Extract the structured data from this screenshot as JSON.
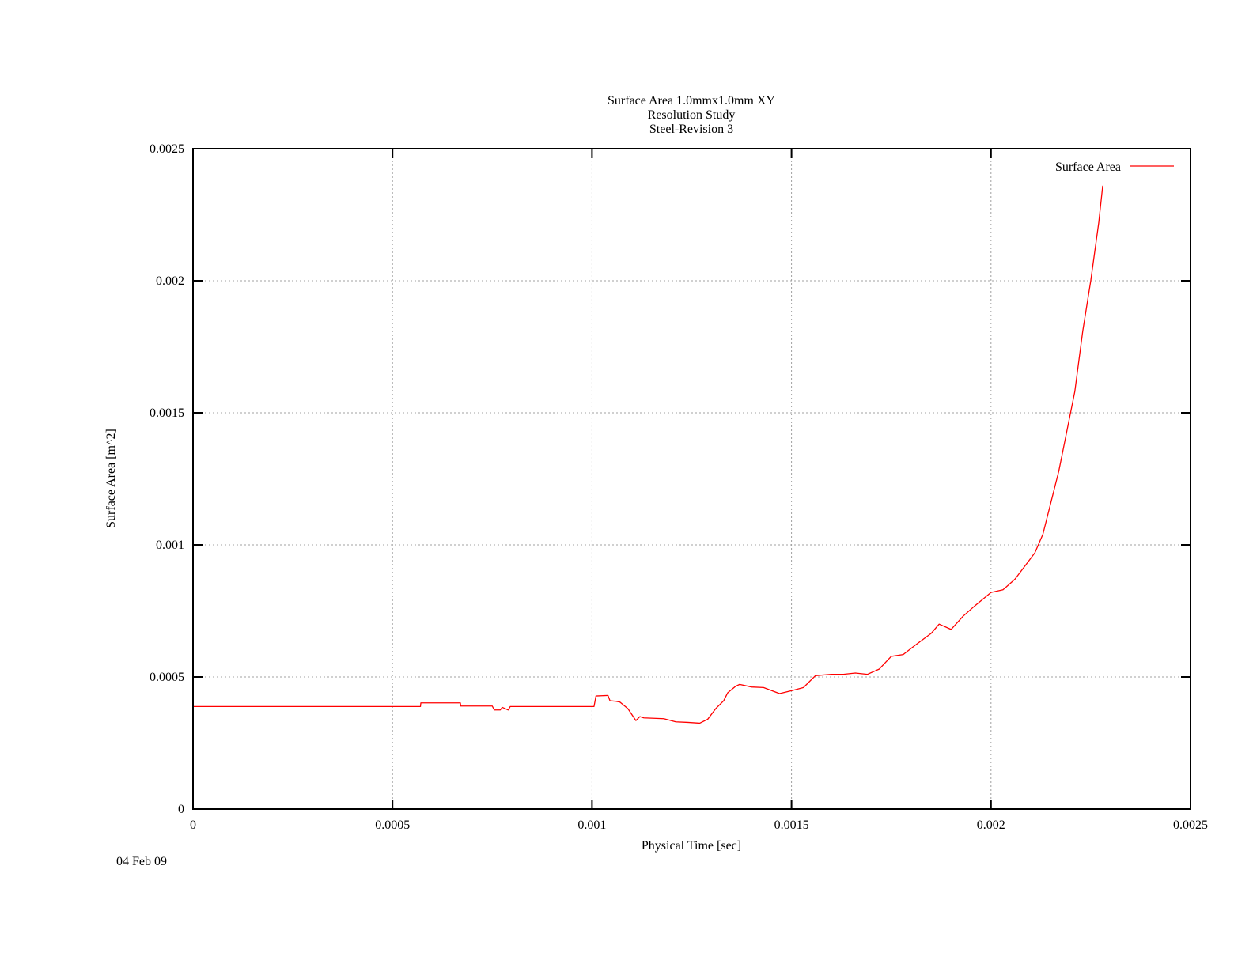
{
  "chart_data": {
    "type": "line",
    "title_lines": [
      "Surface Area 1.0mmx1.0mm XY",
      "Resolution Study",
      "Steel-Revision 3"
    ],
    "xlabel": "Physical Time [sec]",
    "ylabel": "Surface Area [m^2]",
    "xlim": [
      0,
      0.0025
    ],
    "ylim": [
      0,
      0.0025
    ],
    "x_ticks": [
      "0",
      "0.0005",
      "0.001",
      "0.0015",
      "0.002",
      "0.0025"
    ],
    "y_ticks": [
      "0",
      "0.0005",
      "0.001",
      "0.0015",
      "0.002",
      "0.0025"
    ],
    "grid": true,
    "legend_position": "top-right",
    "date_label": "04 Feb 09",
    "colors": {
      "series": "#ff0000",
      "xlabel": "#00ff00",
      "ylabel": "#ff0000"
    },
    "series": [
      {
        "name": "Surface Area",
        "x": [
          0,
          0.0005,
          0.00057,
          0.000571,
          0.00067,
          0.000671,
          0.00075,
          0.000755,
          0.00077,
          0.000775,
          0.00079,
          0.000795,
          0.001,
          0.001005,
          0.00101,
          0.00104,
          0.001045,
          0.00106,
          0.00107,
          0.00109,
          0.00111,
          0.00112,
          0.00113,
          0.00118,
          0.00121,
          0.00124,
          0.00127,
          0.00129,
          0.00131,
          0.00133,
          0.00134,
          0.00136,
          0.00137,
          0.0014,
          0.00143,
          0.00147,
          0.0015,
          0.00153,
          0.00156,
          0.0016,
          0.00163,
          0.00166,
          0.00169,
          0.00172,
          0.00175,
          0.00178,
          0.00181,
          0.00185,
          0.00187,
          0.0019,
          0.00193,
          0.00196,
          0.002,
          0.00203,
          0.00206,
          0.00209,
          0.00211,
          0.00213,
          0.00215,
          0.00217,
          0.00219,
          0.00221,
          0.00223,
          0.00225,
          0.00227,
          0.00228
        ],
        "y": [
          0.000388,
          0.000388,
          0.000388,
          0.000402,
          0.000402,
          0.00039,
          0.00039,
          0.000375,
          0.000375,
          0.000385,
          0.000375,
          0.000388,
          0.000388,
          0.000388,
          0.000428,
          0.00043,
          0.00041,
          0.000408,
          0.000405,
          0.00038,
          0.000335,
          0.00035,
          0.000345,
          0.000342,
          0.00033,
          0.000328,
          0.000325,
          0.00034,
          0.00038,
          0.00041,
          0.00044,
          0.000465,
          0.000472,
          0.000462,
          0.00046,
          0.000437,
          0.000448,
          0.00046,
          0.000505,
          0.00051,
          0.00051,
          0.000515,
          0.00051,
          0.00053,
          0.000578,
          0.000585,
          0.00062,
          0.000665,
          0.0007,
          0.00068,
          0.00073,
          0.00077,
          0.00082,
          0.00083,
          0.00087,
          0.00093,
          0.00097,
          0.00104,
          0.00116,
          0.00128,
          0.00143,
          0.00158,
          0.00181,
          0.002,
          0.00222,
          0.00236
        ]
      }
    ]
  }
}
